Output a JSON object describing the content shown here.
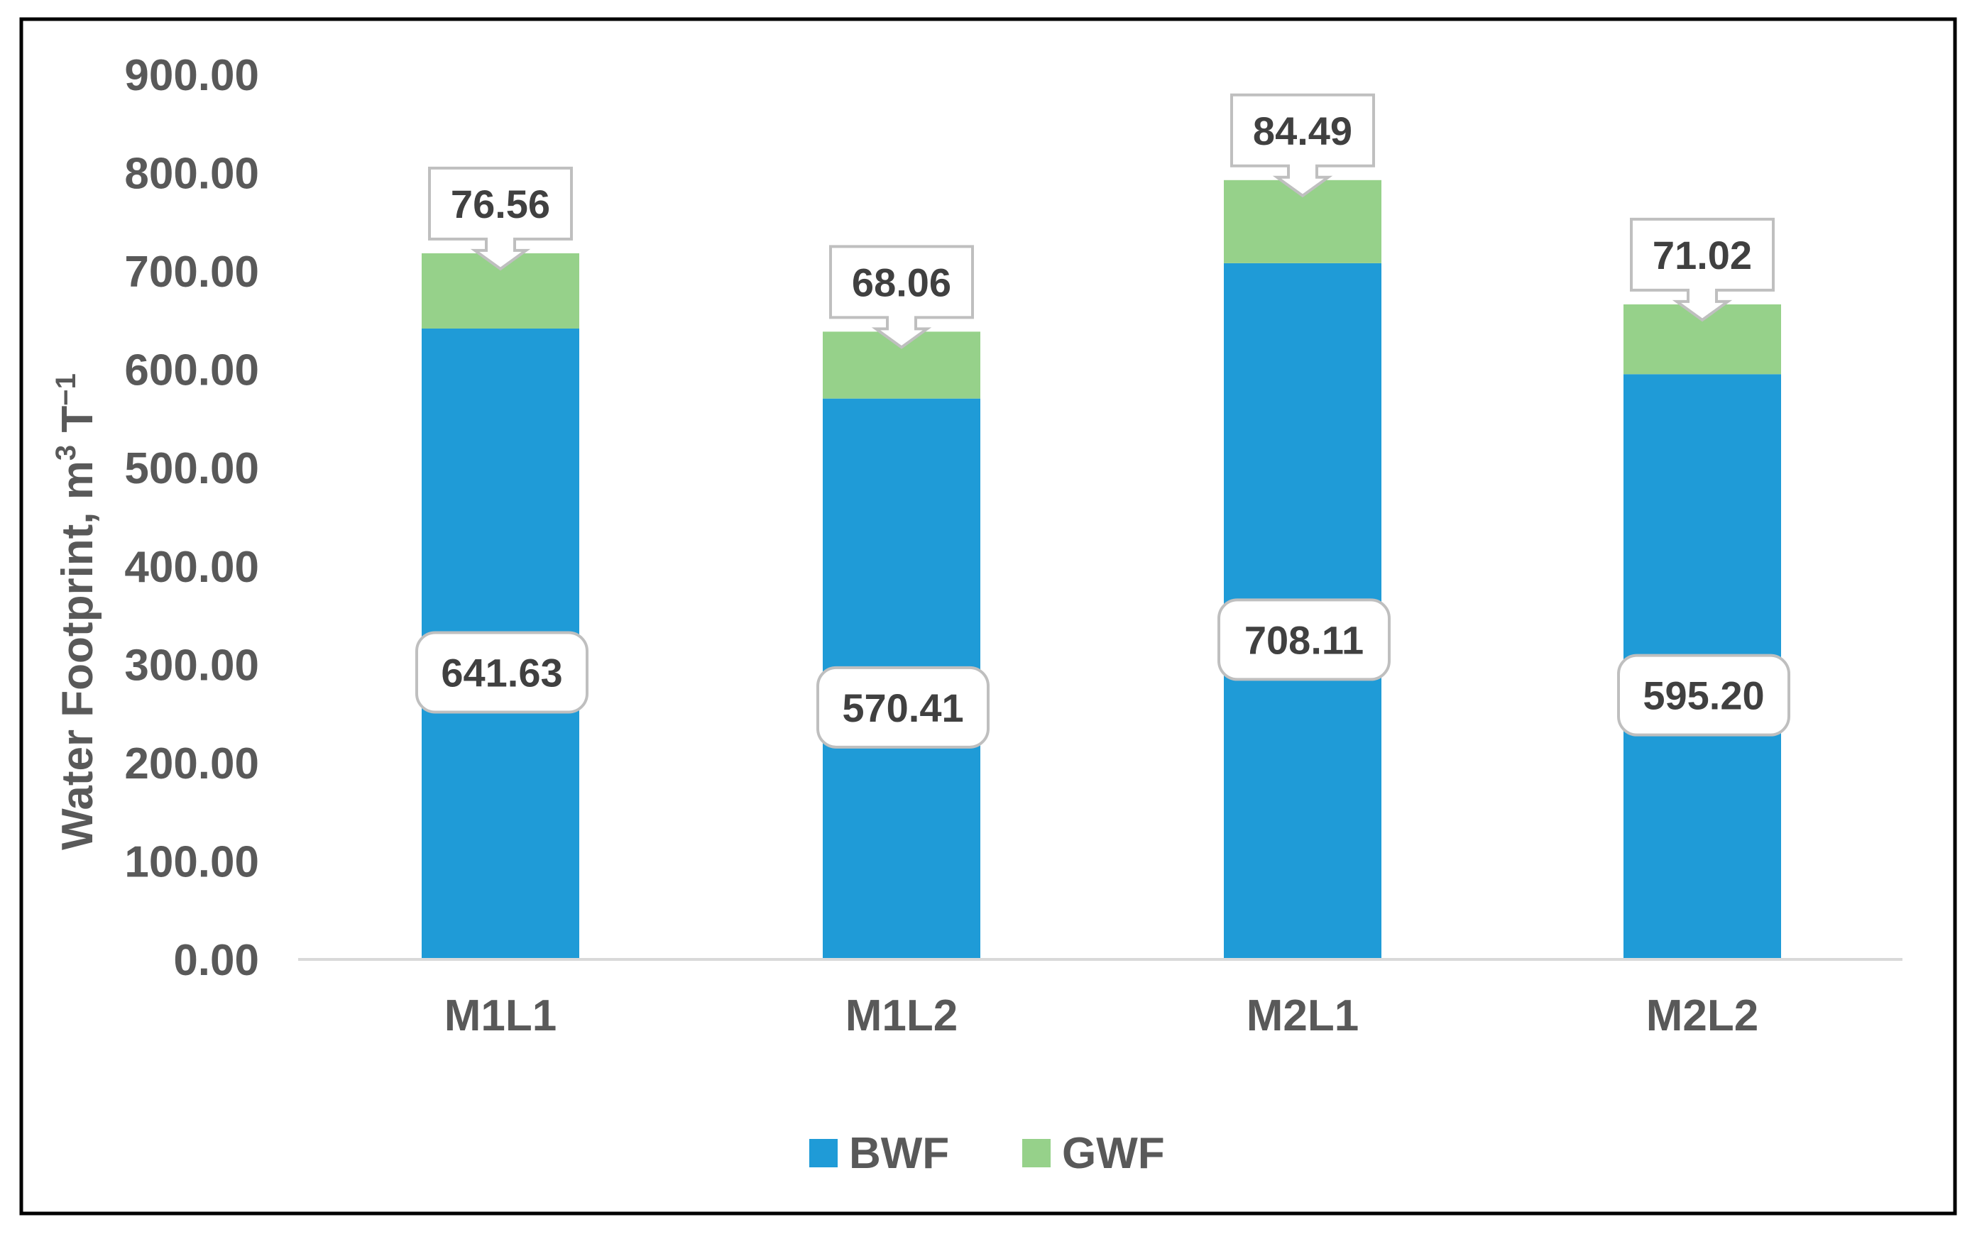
{
  "chart_data": {
    "type": "bar",
    "stacked": true,
    "title": "",
    "xlabel": "",
    "ylabel": "Water Footprint, m³ T⁻¹",
    "ylabel_parts": {
      "main": "Water Footprint, m",
      "sup1": "3",
      "mid": " T",
      "sup2": "−1"
    },
    "ylim": [
      0,
      900
    ],
    "yticks": [
      0,
      100,
      200,
      300,
      400,
      500,
      600,
      700,
      800,
      900
    ],
    "ytick_labels": [
      "0.00",
      "100.00",
      "200.00",
      "300.00",
      "400.00",
      "500.00",
      "600.00",
      "700.00",
      "800.00",
      "900.00"
    ],
    "categories": [
      "M1L1",
      "M1L2",
      "M2L1",
      "M2L2"
    ],
    "series": [
      {
        "name": "BWF",
        "color": "#1f9bd7",
        "values": [
          641.63,
          570.41,
          708.11,
          595.2
        ],
        "labels": [
          "641.63",
          "570.41",
          "708.11",
          "595.20"
        ]
      },
      {
        "name": "GWF",
        "color": "#96d18a",
        "values": [
          76.56,
          68.06,
          84.49,
          71.02
        ],
        "labels": [
          "76.56",
          "68.06",
          "84.49",
          "71.02"
        ]
      }
    ],
    "legend_position": "bottom",
    "grid": false
  }
}
